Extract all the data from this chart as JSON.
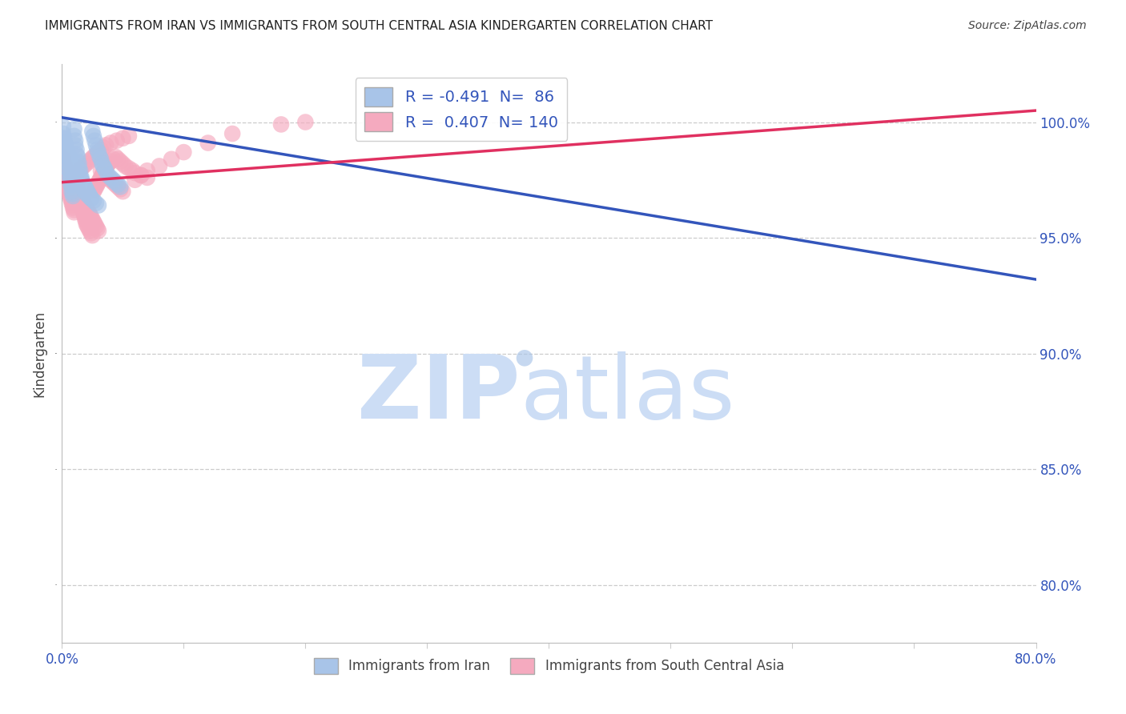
{
  "title": "IMMIGRANTS FROM IRAN VS IMMIGRANTS FROM SOUTH CENTRAL ASIA KINDERGARTEN CORRELATION CHART",
  "source": "Source: ZipAtlas.com",
  "ylabel": "Kindergarten",
  "ytick_labels": [
    "100.0%",
    "95.0%",
    "90.0%",
    "85.0%",
    "80.0%"
  ],
  "ytick_values": [
    1.0,
    0.95,
    0.9,
    0.85,
    0.8
  ],
  "xmin": 0.0,
  "xmax": 0.8,
  "ymin": 0.775,
  "ymax": 1.025,
  "iran_R": -0.491,
  "iran_N": 86,
  "sca_R": 0.407,
  "sca_N": 140,
  "iran_color": "#a8c4e8",
  "sca_color": "#f5aabf",
  "iran_line_color": "#3355bb",
  "sca_line_color": "#e03060",
  "legend_iran_label": "Immigrants from Iran",
  "legend_sca_label": "Immigrants from South Central Asia",
  "watermark_zip_color": "#ccddf5",
  "watermark_atlas_color": "#ccddf5",
  "background_color": "#ffffff",
  "grid_color": "#cccccc",
  "iran_line_x0": 0.0,
  "iran_line_y0": 1.002,
  "iran_line_x1": 0.8,
  "iran_line_y1": 0.932,
  "sca_line_x0": 0.0,
  "sca_line_y0": 0.974,
  "sca_line_x1": 0.8,
  "sca_line_y1": 1.005,
  "iran_scatter_x": [
    0.001,
    0.001,
    0.002,
    0.002,
    0.003,
    0.003,
    0.003,
    0.004,
    0.004,
    0.005,
    0.005,
    0.006,
    0.006,
    0.007,
    0.007,
    0.007,
    0.008,
    0.008,
    0.009,
    0.009,
    0.01,
    0.01,
    0.011,
    0.011,
    0.012,
    0.012,
    0.013,
    0.013,
    0.014,
    0.014,
    0.015,
    0.015,
    0.016,
    0.016,
    0.017,
    0.018,
    0.019,
    0.02,
    0.021,
    0.022,
    0.023,
    0.024,
    0.025,
    0.026,
    0.027,
    0.028,
    0.029,
    0.03,
    0.031,
    0.032,
    0.033,
    0.034,
    0.035,
    0.036,
    0.038,
    0.04,
    0.042,
    0.044,
    0.046,
    0.048,
    0.001,
    0.002,
    0.003,
    0.004,
    0.005,
    0.006,
    0.007,
    0.008,
    0.009,
    0.01,
    0.011,
    0.012,
    0.013,
    0.014,
    0.015,
    0.016,
    0.017,
    0.018,
    0.019,
    0.02,
    0.022,
    0.024,
    0.026,
    0.028,
    0.03,
    0.38
  ],
  "iran_scatter_y": [
    0.998,
    0.995,
    0.993,
    0.991,
    0.99,
    0.988,
    0.986,
    0.985,
    0.983,
    0.982,
    0.98,
    0.979,
    0.977,
    0.976,
    0.975,
    0.973,
    0.972,
    0.97,
    0.969,
    0.968,
    0.997,
    0.994,
    0.992,
    0.99,
    0.988,
    0.986,
    0.985,
    0.983,
    0.982,
    0.98,
    0.979,
    0.977,
    0.976,
    0.975,
    0.974,
    0.973,
    0.972,
    0.971,
    0.97,
    0.969,
    0.968,
    0.967,
    0.996,
    0.994,
    0.992,
    0.99,
    0.988,
    0.987,
    0.985,
    0.984,
    0.982,
    0.981,
    0.98,
    0.979,
    0.977,
    0.976,
    0.975,
    0.974,
    0.973,
    0.972,
    0.993,
    0.991,
    0.989,
    0.988,
    0.986,
    0.985,
    0.983,
    0.982,
    0.98,
    0.979,
    0.978,
    0.977,
    0.976,
    0.975,
    0.974,
    0.973,
    0.972,
    0.971,
    0.97,
    0.969,
    0.968,
    0.967,
    0.966,
    0.965,
    0.964,
    0.898
  ],
  "sca_scatter_x": [
    0.001,
    0.001,
    0.002,
    0.002,
    0.003,
    0.003,
    0.004,
    0.004,
    0.005,
    0.005,
    0.006,
    0.006,
    0.007,
    0.007,
    0.008,
    0.008,
    0.009,
    0.009,
    0.01,
    0.01,
    0.011,
    0.011,
    0.012,
    0.012,
    0.013,
    0.013,
    0.014,
    0.014,
    0.015,
    0.015,
    0.016,
    0.016,
    0.017,
    0.017,
    0.018,
    0.018,
    0.019,
    0.019,
    0.02,
    0.02,
    0.021,
    0.022,
    0.023,
    0.024,
    0.025,
    0.026,
    0.027,
    0.028,
    0.029,
    0.03,
    0.031,
    0.032,
    0.033,
    0.034,
    0.035,
    0.036,
    0.037,
    0.038,
    0.04,
    0.042,
    0.044,
    0.046,
    0.048,
    0.05,
    0.052,
    0.055,
    0.058,
    0.06,
    0.065,
    0.07,
    0.001,
    0.002,
    0.003,
    0.004,
    0.005,
    0.006,
    0.007,
    0.008,
    0.009,
    0.01,
    0.011,
    0.012,
    0.013,
    0.014,
    0.015,
    0.016,
    0.017,
    0.018,
    0.019,
    0.02,
    0.021,
    0.022,
    0.023,
    0.024,
    0.025,
    0.026,
    0.027,
    0.028,
    0.029,
    0.03,
    0.032,
    0.034,
    0.036,
    0.038,
    0.04,
    0.042,
    0.044,
    0.046,
    0.048,
    0.05,
    0.006,
    0.008,
    0.01,
    0.012,
    0.014,
    0.016,
    0.018,
    0.02,
    0.022,
    0.024,
    0.026,
    0.028,
    0.03,
    0.032,
    0.034,
    0.036,
    0.04,
    0.045,
    0.05,
    0.055,
    0.06,
    0.065,
    0.07,
    0.08,
    0.09,
    0.1,
    0.12,
    0.14,
    0.18,
    0.2
  ],
  "sca_scatter_y": [
    0.985,
    0.982,
    0.98,
    0.978,
    0.977,
    0.975,
    0.974,
    0.973,
    0.972,
    0.971,
    0.97,
    0.969,
    0.968,
    0.967,
    0.966,
    0.965,
    0.964,
    0.963,
    0.962,
    0.961,
    0.975,
    0.974,
    0.973,
    0.972,
    0.971,
    0.97,
    0.969,
    0.968,
    0.967,
    0.966,
    0.965,
    0.964,
    0.963,
    0.962,
    0.961,
    0.96,
    0.959,
    0.958,
    0.957,
    0.956,
    0.955,
    0.954,
    0.953,
    0.952,
    0.951,
    0.97,
    0.971,
    0.972,
    0.973,
    0.974,
    0.975,
    0.976,
    0.977,
    0.978,
    0.979,
    0.98,
    0.981,
    0.982,
    0.983,
    0.984,
    0.985,
    0.984,
    0.983,
    0.982,
    0.981,
    0.98,
    0.979,
    0.978,
    0.977,
    0.976,
    0.984,
    0.982,
    0.98,
    0.979,
    0.978,
    0.977,
    0.976,
    0.975,
    0.974,
    0.973,
    0.972,
    0.971,
    0.97,
    0.969,
    0.968,
    0.967,
    0.966,
    0.965,
    0.964,
    0.963,
    0.962,
    0.961,
    0.96,
    0.959,
    0.958,
    0.957,
    0.956,
    0.955,
    0.954,
    0.953,
    0.979,
    0.978,
    0.977,
    0.976,
    0.975,
    0.974,
    0.973,
    0.972,
    0.971,
    0.97,
    0.975,
    0.976,
    0.977,
    0.978,
    0.979,
    0.98,
    0.981,
    0.982,
    0.983,
    0.984,
    0.985,
    0.986,
    0.987,
    0.988,
    0.989,
    0.99,
    0.991,
    0.992,
    0.993,
    0.994,
    0.975,
    0.977,
    0.979,
    0.981,
    0.984,
    0.987,
    0.991,
    0.995,
    0.999,
    1.0
  ]
}
